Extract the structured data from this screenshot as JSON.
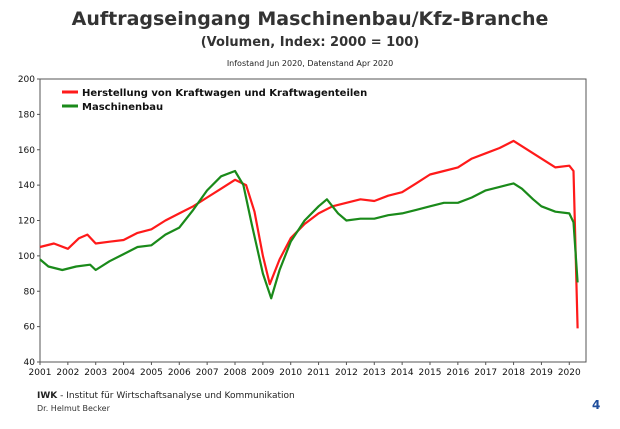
{
  "header": {
    "title": "Auftragseingang Maschinenbau/Kfz-Branche",
    "subtitle": "(Volumen, Index: 2000 = 100)",
    "info": "Infostand Jun 2020, Datenstand Apr 2020"
  },
  "footer": {
    "org_abbr": "IWK",
    "org_rest": " - Institut für Wirtschaftsanalyse und Kommunikation",
    "author": "Dr. Helmut Becker",
    "page_number": "4"
  },
  "chart_data": {
    "type": "line",
    "title": "",
    "xlabel": "",
    "ylabel": "",
    "xlim": [
      2001,
      2020.6
    ],
    "ylim": [
      40,
      200
    ],
    "yticks": [
      40,
      60,
      80,
      100,
      120,
      140,
      160,
      180,
      200
    ],
    "xticks": [
      "2001",
      "2002",
      "2003",
      "2004",
      "2005",
      "2006",
      "2007",
      "2008",
      "2009",
      "2010",
      "2011",
      "2012",
      "2013",
      "2014",
      "2015",
      "2016",
      "2017",
      "2018",
      "2019",
      "2020"
    ],
    "grid": false,
    "legend": "top-left",
    "series": [
      {
        "name": "Herstellung von Kraftwagen und Kraftwagenteilen",
        "color": "#ff1a1a",
        "x": [
          2001.0,
          2001.5,
          2002.0,
          2002.4,
          2002.7,
          2003.0,
          2003.5,
          2004.0,
          2004.5,
          2005.0,
          2005.5,
          2006.0,
          2006.5,
          2007.0,
          2007.5,
          2008.0,
          2008.4,
          2008.7,
          2009.0,
          2009.25,
          2009.6,
          2010.0,
          2010.5,
          2011.0,
          2011.5,
          2012.0,
          2012.5,
          2013.0,
          2013.5,
          2014.0,
          2014.5,
          2015.0,
          2015.5,
          2016.0,
          2016.5,
          2017.0,
          2017.5,
          2018.0,
          2018.3,
          2018.7,
          2019.0,
          2019.5,
          2020.0,
          2020.15,
          2020.3
        ],
        "y": [
          105,
          107,
          104,
          110,
          112,
          107,
          108,
          109,
          113,
          115,
          120,
          124,
          128,
          133,
          138,
          143,
          140,
          125,
          100,
          84,
          98,
          110,
          118,
          124,
          128,
          130,
          132,
          131,
          134,
          136,
          141,
          146,
          148,
          150,
          155,
          158,
          161,
          165,
          162,
          158,
          155,
          150,
          151,
          148,
          59
        ]
      },
      {
        "name": "Maschinenbau",
        "color": "#1a8a1a",
        "x": [
          2001.0,
          2001.3,
          2001.8,
          2002.3,
          2002.8,
          2003.0,
          2003.5,
          2004.0,
          2004.5,
          2005.0,
          2005.5,
          2006.0,
          2006.5,
          2007.0,
          2007.5,
          2008.0,
          2008.3,
          2008.6,
          2009.0,
          2009.3,
          2009.6,
          2010.0,
          2010.5,
          2011.0,
          2011.3,
          2011.7,
          2012.0,
          2012.5,
          2013.0,
          2013.5,
          2014.0,
          2014.5,
          2015.0,
          2015.5,
          2016.0,
          2016.5,
          2017.0,
          2017.5,
          2018.0,
          2018.3,
          2018.7,
          2019.0,
          2019.5,
          2020.0,
          2020.15,
          2020.3
        ],
        "y": [
          98,
          94,
          92,
          94,
          95,
          92,
          97,
          101,
          105,
          106,
          112,
          116,
          126,
          137,
          145,
          148,
          140,
          118,
          90,
          76,
          92,
          108,
          120,
          128,
          132,
          124,
          120,
          121,
          121,
          123,
          124,
          126,
          128,
          130,
          130,
          133,
          137,
          139,
          141,
          138,
          132,
          128,
          125,
          124,
          119,
          85
        ]
      }
    ]
  }
}
